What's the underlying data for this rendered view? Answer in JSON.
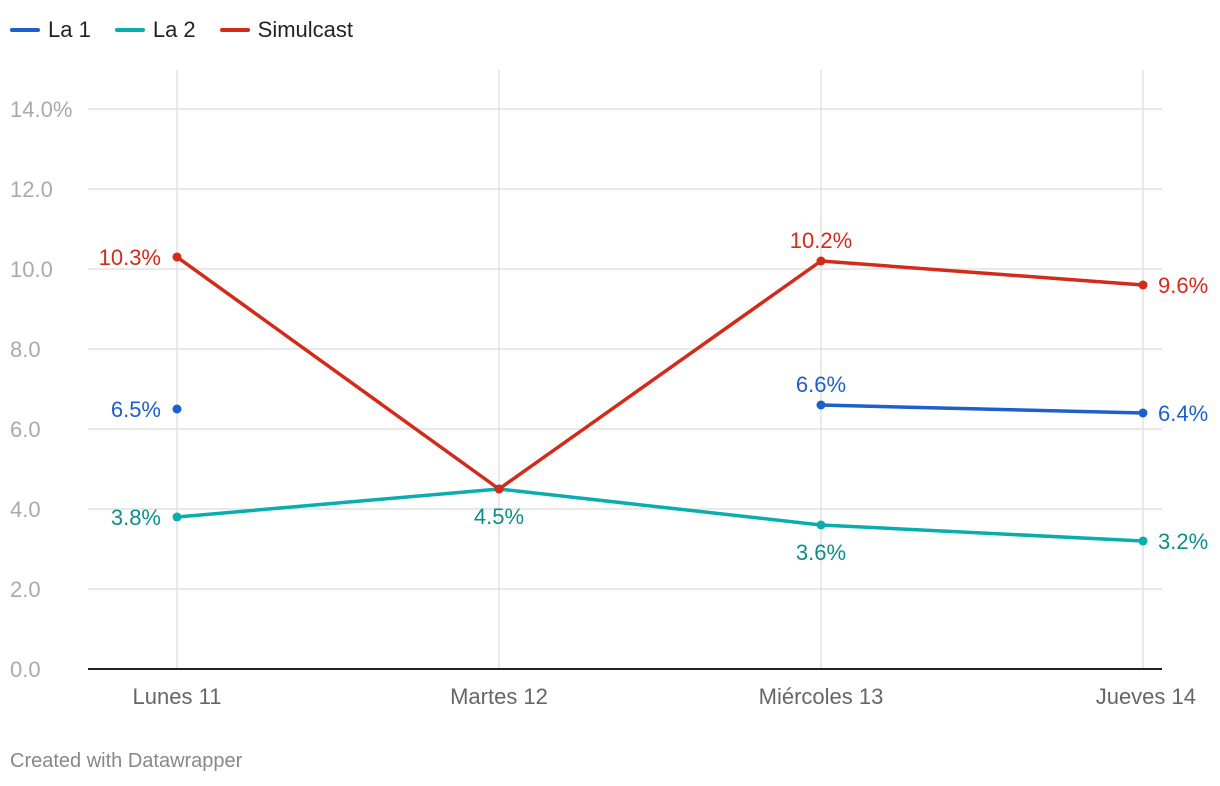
{
  "chart_data": {
    "type": "line",
    "title": "",
    "xlabel": "",
    "ylabel": "",
    "categories": [
      "Lunes 11",
      "Martes 12",
      "Miércoles 13",
      "Jueves 14"
    ],
    "y_ticks": [
      0,
      2,
      4,
      6,
      8,
      10,
      12,
      14
    ],
    "y_tick_labels": [
      "0.0",
      "2.0",
      "4.0",
      "6.0",
      "8.0",
      "10.0",
      "12.0",
      "14.0%"
    ],
    "ylim": [
      0,
      15
    ],
    "grid": true,
    "legend_position": "top-left",
    "series": [
      {
        "name": "La 1",
        "color": "#1d5fcc",
        "values": [
          6.5,
          null,
          6.6,
          6.4
        ],
        "labels": [
          "6.5%",
          "",
          "6.6%",
          "6.4%"
        ],
        "label_positions": [
          "left",
          "none",
          "above",
          "right"
        ]
      },
      {
        "name": "La 2",
        "color": "#08aeae",
        "label_color": "#0b8f8c",
        "values": [
          3.8,
          4.5,
          3.6,
          3.2
        ],
        "labels": [
          "3.8%",
          "4.5%",
          "3.6%",
          "3.2%"
        ],
        "label_positions": [
          "left",
          "below",
          "below",
          "right"
        ]
      },
      {
        "name": "Simulcast",
        "color": "#d42a1a",
        "values": [
          10.3,
          4.5,
          10.2,
          9.6
        ],
        "labels": [
          "10.3%",
          "",
          "10.2%",
          "9.6%"
        ],
        "label_positions": [
          "left",
          "none",
          "above",
          "right"
        ]
      }
    ]
  },
  "footer": {
    "credit": "Created with Datawrapper"
  }
}
